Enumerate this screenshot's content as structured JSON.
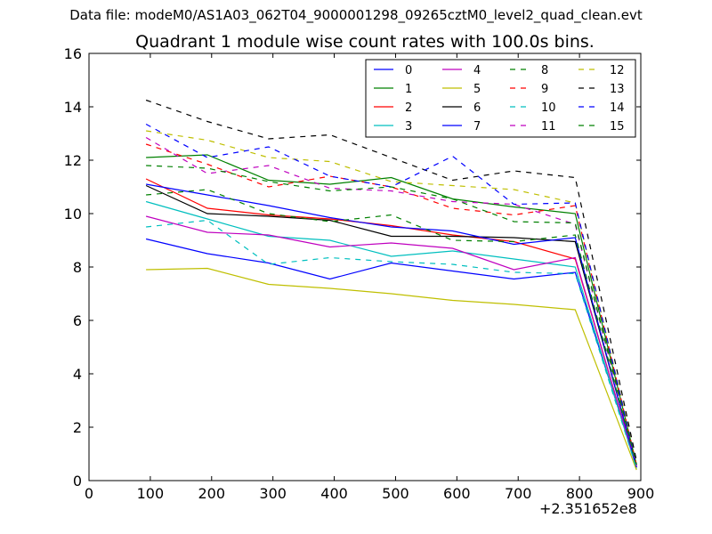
{
  "suptitle": "Data file: modeM0/AS1A03_062T04_9000001298_09265cztM0_level2_quad_clean.evt",
  "chart_data": {
    "type": "line",
    "title": "Quadrant 1 module wise count rates with 100.0s bins.",
    "xlabel": "",
    "ylabel": "",
    "x_offset_label": "+2.351652e8",
    "xlim": [
      0,
      900
    ],
    "ylim": [
      0,
      16
    ],
    "xticks": [
      "0",
      "100",
      "200",
      "300",
      "400",
      "500",
      "600",
      "700",
      "800",
      "900"
    ],
    "yticks": [
      "0",
      "2",
      "4",
      "6",
      "8",
      "10",
      "12",
      "14",
      "16"
    ],
    "grid": false,
    "legend_position": "top-right",
    "x": [
      93,
      193,
      293,
      393,
      493,
      593,
      693,
      793,
      893
    ],
    "series": [
      {
        "name": "0",
        "color": "#0000ff",
        "dash": false,
        "values": [
          9.05,
          8.5,
          8.15,
          7.55,
          8.15,
          7.85,
          7.55,
          7.8,
          0.55
        ]
      },
      {
        "name": "1",
        "color": "#008000",
        "dash": false,
        "values": [
          12.1,
          12.2,
          11.25,
          11.1,
          11.35,
          10.55,
          10.25,
          10.0,
          0.6
        ]
      },
      {
        "name": "2",
        "color": "#ff0000",
        "dash": false,
        "values": [
          11.3,
          10.2,
          9.95,
          9.8,
          9.55,
          9.2,
          8.95,
          8.3,
          0.5
        ]
      },
      {
        "name": "3",
        "color": "#00bfbf",
        "dash": false,
        "values": [
          10.45,
          9.8,
          9.15,
          9.0,
          8.4,
          8.6,
          8.3,
          8.0,
          0.45
        ]
      },
      {
        "name": "4",
        "color": "#bf00bf",
        "dash": false,
        "values": [
          9.9,
          9.3,
          9.2,
          8.75,
          8.9,
          8.7,
          7.9,
          8.35,
          0.5
        ]
      },
      {
        "name": "5",
        "color": "#bfbf00",
        "dash": false,
        "values": [
          7.9,
          7.95,
          7.35,
          7.2,
          7.0,
          6.75,
          6.6,
          6.4,
          0.4
        ]
      },
      {
        "name": "6",
        "color": "#000000",
        "dash": false,
        "values": [
          11.05,
          10.0,
          9.9,
          9.75,
          9.15,
          9.15,
          9.1,
          8.95,
          0.55
        ]
      },
      {
        "name": "7",
        "color": "#0000ff",
        "dash": false,
        "values": [
          11.1,
          10.7,
          10.3,
          9.85,
          9.5,
          9.35,
          8.85,
          9.1,
          0.5
        ]
      },
      {
        "name": "8",
        "color": "#008000",
        "dash": true,
        "values": [
          10.7,
          10.9,
          10.0,
          9.7,
          9.95,
          9.0,
          8.95,
          9.2,
          0.55
        ]
      },
      {
        "name": "9",
        "color": "#ff0000",
        "dash": true,
        "values": [
          12.6,
          11.85,
          11.0,
          11.4,
          11.0,
          10.2,
          9.95,
          10.3,
          0.6
        ]
      },
      {
        "name": "10",
        "color": "#00bfbf",
        "dash": true,
        "values": [
          9.5,
          9.75,
          8.1,
          8.35,
          8.2,
          8.1,
          7.8,
          7.75,
          0.45
        ]
      },
      {
        "name": "11",
        "color": "#bf00bf",
        "dash": true,
        "values": [
          12.85,
          11.5,
          11.8,
          10.95,
          10.85,
          10.45,
          10.35,
          9.6,
          0.55
        ]
      },
      {
        "name": "12",
        "color": "#bfbf00",
        "dash": true,
        "values": [
          13.1,
          12.75,
          12.1,
          11.95,
          11.2,
          11.05,
          10.9,
          10.4,
          0.7
        ]
      },
      {
        "name": "13",
        "color": "#000000",
        "dash": true,
        "values": [
          14.25,
          13.45,
          12.8,
          12.95,
          12.1,
          11.25,
          11.6,
          11.35,
          0.75
        ]
      },
      {
        "name": "14",
        "color": "#0000ff",
        "dash": true,
        "values": [
          13.35,
          12.1,
          12.5,
          11.4,
          11.0,
          12.15,
          10.35,
          10.4,
          0.6
        ]
      },
      {
        "name": "15",
        "color": "#008000",
        "dash": true,
        "values": [
          11.8,
          11.7,
          11.2,
          10.85,
          11.0,
          10.55,
          9.7,
          9.65,
          0.6
        ]
      }
    ]
  }
}
